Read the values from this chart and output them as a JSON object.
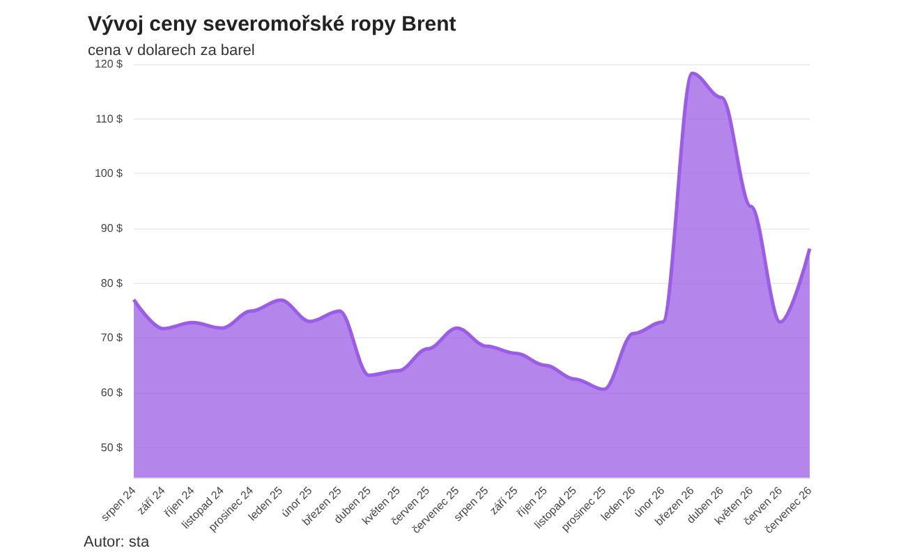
{
  "chart_data": {
    "type": "area",
    "title": "Vývoj ceny severomořské ropy Brent",
    "subtitle": "cena v dolarech za barel",
    "categories": [
      "srpen 24",
      "září 24",
      "říjen 24",
      "listopad 24",
      "prosinec 24",
      "leden 25",
      "únor 25",
      "březen 25",
      "duben 25",
      "květen 25",
      "červen 25",
      "červenec 25",
      "srpen 25",
      "září 25",
      "říjen 25",
      "listopad 25",
      "prosinec 25",
      "leden 26",
      "únor 26",
      "březen 26",
      "duben 26",
      "květen 26",
      "červen 26",
      "červenec 26"
    ],
    "values": [
      77,
      71.7,
      72.8,
      71.8,
      74.9,
      76.9,
      73,
      74.9,
      63.2,
      64,
      68,
      71.8,
      68.5,
      67.2,
      65,
      62.5,
      60.6,
      70.8,
      72.9,
      118.3,
      113.9,
      94,
      72.9,
      86.3
    ],
    "color": "#9b5de5",
    "ylim": [
      44.5,
      120
    ],
    "yticks": [
      {
        "value": 50,
        "label": "50 $"
      },
      {
        "value": 60,
        "label": "60 $"
      },
      {
        "value": 70,
        "label": "70 $"
      },
      {
        "value": 80,
        "label": "80 $"
      },
      {
        "value": 90,
        "label": "90 $"
      },
      {
        "value": 100,
        "label": "100 $"
      },
      {
        "value": 110,
        "label": "110 $"
      },
      {
        "value": 120,
        "label": "120 $"
      }
    ],
    "grid": "y",
    "marker": "none",
    "line_style": "solid",
    "annotations": [
      "Autor: sta"
    ]
  }
}
